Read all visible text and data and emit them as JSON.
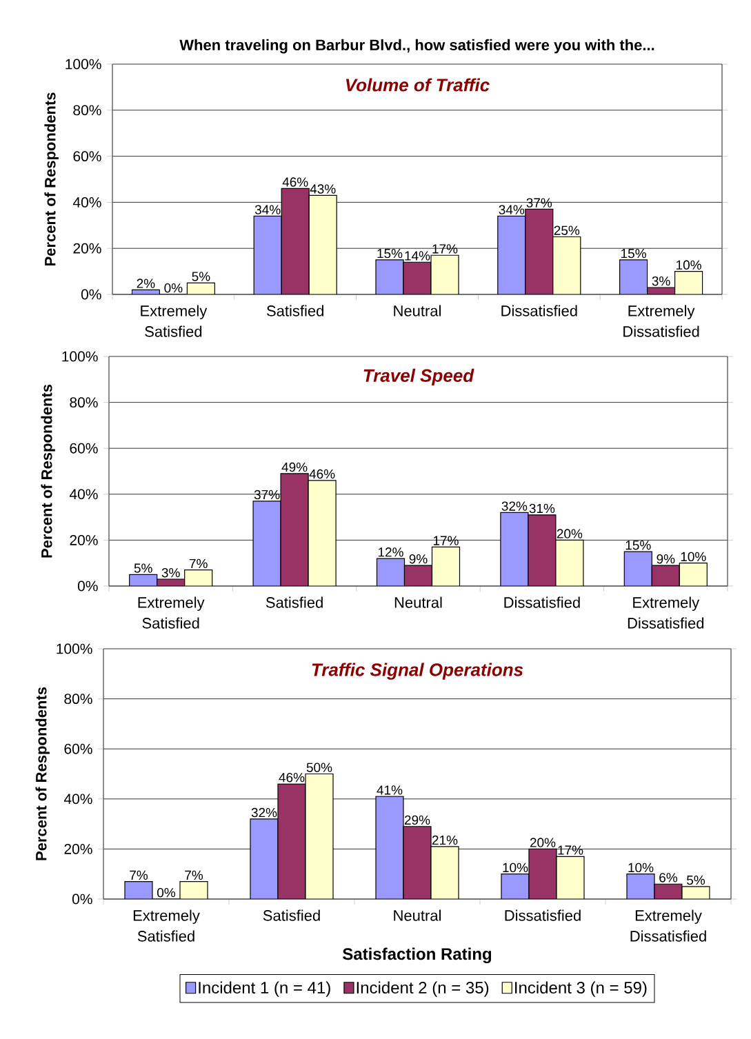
{
  "chart_data": [
    {
      "type": "bar",
      "title": "When traveling on Barbur Blvd., how satisfied were you with the...",
      "subtitle": "Volume of Traffic",
      "ylabel": "Percent of Respondents",
      "categories": [
        "Extremely Satisfied",
        "Satisfied",
        "Neutral",
        "Dissatisfied",
        "Extremely Dissatisfied"
      ],
      "series": [
        {
          "color": "#9999ff",
          "values": [
            2,
            34,
            15,
            34,
            15
          ],
          "value_labels": [
            "2%",
            "34%",
            "15%",
            "34%",
            "15%"
          ]
        },
        {
          "color": "#993366",
          "values": [
            0,
            46,
            14,
            37,
            3
          ],
          "value_labels": [
            "0%",
            "46%",
            "14%",
            "37%",
            "3%"
          ]
        },
        {
          "color": "#ffffcc",
          "values": [
            5,
            43,
            17,
            25,
            10
          ],
          "value_labels": [
            "5%",
            "43%",
            "17%",
            "25%",
            "10%"
          ]
        }
      ],
      "ylim": [
        0,
        100
      ],
      "yticks": [
        {
          "value": 0,
          "label": "0%"
        },
        {
          "value": 20,
          "label": "20%"
        },
        {
          "value": 40,
          "label": "40%"
        },
        {
          "value": 60,
          "label": "60%"
        },
        {
          "value": 80,
          "label": "80%"
        },
        {
          "value": 100,
          "label": "100%"
        }
      ],
      "grid": "y"
    },
    {
      "type": "bar",
      "title": "Travel Speed",
      "ylabel": "Percent of Respondents",
      "categories": [
        "Extremely Satisfied",
        "Satisfied",
        "Neutral",
        "Dissatisfied",
        "Extremely Dissatisfied"
      ],
      "series": [
        {
          "color": "#9999ff",
          "values": [
            5,
            37,
            12,
            32,
            15
          ],
          "value_labels": [
            "5%",
            "37%",
            "12%",
            "32%",
            "15%"
          ]
        },
        {
          "color": "#993366",
          "values": [
            3,
            49,
            9,
            31,
            9
          ],
          "value_labels": [
            "3%",
            "49%",
            "9%",
            "31%",
            "9%"
          ]
        },
        {
          "color": "#ffffcc",
          "values": [
            7,
            46,
            17,
            20,
            10
          ],
          "value_labels": [
            "7%",
            "46%",
            "17%",
            "20%",
            "10%"
          ]
        }
      ],
      "ylim": [
        0,
        100
      ],
      "yticks": [
        {
          "value": 0,
          "label": "0%"
        },
        {
          "value": 20,
          "label": "20%"
        },
        {
          "value": 40,
          "label": "40%"
        },
        {
          "value": 60,
          "label": "60%"
        },
        {
          "value": 80,
          "label": "80%"
        },
        {
          "value": 100,
          "label": "100%"
        }
      ],
      "grid": "y"
    },
    {
      "type": "bar",
      "title": "Traffic Signal Operations",
      "ylabel": "Percent of Respondents",
      "xlabel": "Satisfaction Rating",
      "categories": [
        "Extremely Satisfied",
        "Satisfied",
        "Neutral",
        "Dissatisfied",
        "Extremely Dissatisfied"
      ],
      "series": [
        {
          "name": "Incident 1 (n = 41)",
          "color": "#9999ff",
          "values": [
            7,
            32,
            41,
            10,
            10
          ],
          "value_labels": [
            "7%",
            "32%",
            "41%",
            "10%",
            "10%"
          ]
        },
        {
          "name": "Incident 2 (n = 35)",
          "color": "#993366",
          "values": [
            0,
            46,
            29,
            20,
            6
          ],
          "value_labels": [
            "0%",
            "46%",
            "29%",
            "20%",
            "6%"
          ]
        },
        {
          "name": "Incident 3 (n = 59)",
          "color": "#ffffcc",
          "values": [
            7,
            50,
            21,
            17,
            5
          ],
          "value_labels": [
            "7%",
            "50%",
            "21%",
            "17%",
            "5%"
          ]
        }
      ],
      "ylim": [
        0,
        100
      ],
      "yticks": [
        {
          "value": 0,
          "label": "0%"
        },
        {
          "value": 20,
          "label": "20%"
        },
        {
          "value": 40,
          "label": "40%"
        },
        {
          "value": 60,
          "label": "60%"
        },
        {
          "value": 80,
          "label": "80%"
        },
        {
          "value": 100,
          "label": "100%"
        }
      ],
      "grid": "y",
      "legend": "bottom"
    }
  ]
}
